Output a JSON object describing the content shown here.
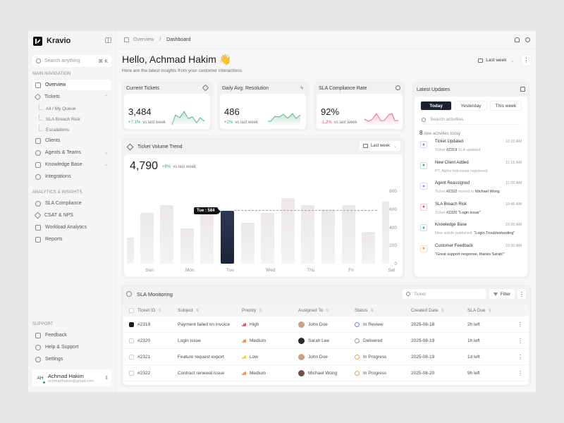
{
  "app": {
    "name": "Kravio"
  },
  "sidebar": {
    "search": {
      "placeholder": "Search anything",
      "shortcut": "⌘ K"
    },
    "main_nav_label": "MAIN NAVIGATION",
    "main_nav": [
      {
        "label": "Overview",
        "icon": "grid-icon",
        "active": true
      },
      {
        "label": "Tickets",
        "icon": "ticket-icon",
        "expanded": true
      },
      {
        "label": "Clients",
        "icon": "clients-icon"
      },
      {
        "label": "Agents & Teams",
        "icon": "team-icon",
        "has_children": true
      },
      {
        "label": "Knowledge Base",
        "icon": "book-icon",
        "has_children": true
      },
      {
        "label": "Integrations",
        "icon": "integrations-icon"
      }
    ],
    "ticket_sub": [
      "All / My Queue",
      "SLA Breach Risk",
      "Escalations"
    ],
    "analytics_label": "ANALYTICS & INSIGHTS",
    "analytics": [
      {
        "label": "SLA Compliance",
        "icon": "gauge-icon"
      },
      {
        "label": "CSAT & NPS",
        "icon": "star-icon"
      },
      {
        "label": "Workload Analytics",
        "icon": "chart-icon"
      },
      {
        "label": "Reports",
        "icon": "report-icon"
      }
    ],
    "support_label": "SUPPORT",
    "support": [
      {
        "label": "Feedback",
        "icon": "feedback-icon"
      },
      {
        "label": "Help & Support",
        "icon": "headset-icon"
      },
      {
        "label": "Settings",
        "icon": "gear-icon"
      }
    ],
    "user": {
      "initials": "AH",
      "name": "Achmad Hakim",
      "email": "achmadhakim@gmail.com"
    }
  },
  "topbar": {
    "breadcrumb": [
      "Overview",
      "Dashboard"
    ]
  },
  "header": {
    "greeting": "Hello, Achmad Hakim 👋",
    "subtitle": "Here are the latest insights from your customer interactions.",
    "range": "Last week",
    "more": "⋮"
  },
  "kpis": [
    {
      "title": "Current Tickets",
      "value": "3,484",
      "delta": "+7.1%",
      "delta_dir": "up",
      "compare": "vs last week",
      "color": "#5bb38b"
    },
    {
      "title": "Daily Avg. Resolution",
      "value": "486",
      "delta": "+2%",
      "delta_dir": "up",
      "compare": "vs last week",
      "color": "#5bb38b"
    },
    {
      "title": "SLA Compliance Rate",
      "value": "92%",
      "delta": "-1.2%",
      "delta_dir": "down",
      "compare": "vs last week",
      "color": "#e0738a"
    }
  ],
  "trend": {
    "title": "Ticket Volume Trend",
    "range": "Last week",
    "total": "4,790",
    "delta": "+8%",
    "compare": "vs last week",
    "tooltip": "Tue : 584"
  },
  "chart_data": {
    "type": "bar",
    "title": "Ticket Volume Trend",
    "categories": [
      "Sun",
      "Mon",
      "Tue",
      "Wed",
      "Thu",
      "Fri",
      "Sat"
    ],
    "bar_values": [
      290,
      560,
      645,
      390,
      560,
      584,
      450,
      560,
      720,
      645,
      600,
      645,
      350,
      680
    ],
    "highlight": {
      "label": "Tue",
      "value": 584
    },
    "yticks": [
      0,
      200,
      400,
      600,
      800
    ],
    "ylim": [
      0,
      800
    ],
    "xlabel": "",
    "ylabel": "",
    "grid": false
  },
  "updates": {
    "title": "Latest Updates",
    "tabs": [
      "Today",
      "Yesterday",
      "This week"
    ],
    "active_tab": "Today",
    "search_placeholder": "Search activities",
    "count": "8",
    "count_label": "new activities today",
    "items": [
      {
        "title": "Ticket Updated",
        "time": "11:20 AM",
        "pre": "Ticket ",
        "b1": "#2319",
        "mid": " SLA updated",
        "b2": "",
        "icon": "ticket-icon",
        "color": "#8f7ef0"
      },
      {
        "title": "New Client Added",
        "time": "11:15 AM",
        "pre": "PT. Alpha Indonesia registered",
        "b1": "",
        "mid": "",
        "b2": "",
        "icon": "user-icon",
        "color": "#4fa77a"
      },
      {
        "title": "Agent Reassigned",
        "time": "11:00 AM",
        "pre": "Ticket ",
        "b1": "#2322",
        "mid": " moved to ",
        "b2": "Michael Wong",
        "icon": "swap-icon",
        "color": "#a783f0"
      },
      {
        "title": "SLA Breach Risk",
        "time": "10:45 AM",
        "pre": "Ticket ",
        "b1": "#2320 \"Login issue\"",
        "mid": "",
        "b2": "",
        "icon": "warning-icon",
        "color": "#e0566d"
      },
      {
        "title": "Knowledge Base",
        "time": "10:30 AM",
        "pre": "New article published: ",
        "b1": "\"Login Troubleshooting\"",
        "mid": "",
        "b2": "",
        "icon": "book-icon",
        "color": "#4aa3c8"
      },
      {
        "title": "Customer Feedback",
        "time": "10:30 AM",
        "pre": "",
        "b1": "\"Great support response, thanks Sarah!\"",
        "mid": "",
        "b2": "",
        "icon": "star-icon",
        "color": "#f0a04b"
      }
    ]
  },
  "sla": {
    "title": "SLA Monitoring",
    "search_placeholder": "Ticket",
    "filter_label": "Filter",
    "columns": [
      "Ticket ID",
      "Subject",
      "Priority",
      "Assigned To",
      "Status",
      "Created Date",
      "SLA Due"
    ],
    "rows": [
      {
        "checked": true,
        "id": "#2319",
        "subject": "Payment failed on invoice",
        "priority": "High",
        "priority_color": "#e0566d",
        "assignee": "John Doe",
        "avatar": "#c9a08a",
        "status": "In Review",
        "status_color": "#6d8ef0",
        "created": "2025-08-18",
        "due": "2h left"
      },
      {
        "checked": false,
        "id": "#2320",
        "subject": "Login issue",
        "priority": "Medium",
        "priority_color": "#f0934b",
        "assignee": "Sarah Lee",
        "avatar": "#2d2a2a",
        "status": "Delivered",
        "status_color": "#9a989c",
        "created": "2025-08-19",
        "due": "1h left"
      },
      {
        "checked": false,
        "id": "#2321",
        "subject": "Feature request export",
        "priority": "Low",
        "priority_color": "#f0d24b",
        "assignee": "John Doe",
        "avatar": "#c9a08a",
        "status": "In Progress",
        "status_color": "#f0a04b",
        "created": "2025-08-19",
        "due": "1d left"
      },
      {
        "checked": false,
        "id": "#2322",
        "subject": "Contract renewal issue",
        "priority": "Medium",
        "priority_color": "#f0934b",
        "assignee": "Michael Wong",
        "avatar": "#6b5450",
        "status": "In Progress",
        "status_color": "#f0a04b",
        "created": "2025-08-20",
        "due": "9h left"
      }
    ]
  }
}
